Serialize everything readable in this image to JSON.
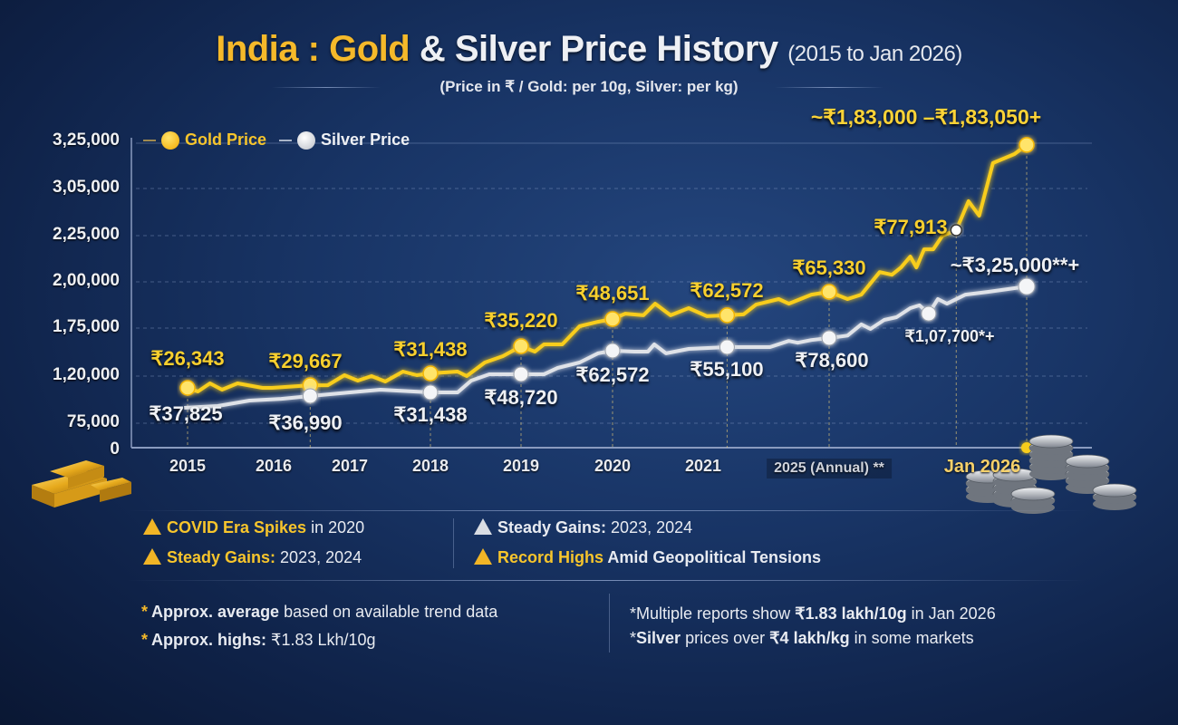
{
  "title": {
    "part1": "India : Gold",
    "part2": "& Silver Price History",
    "range": "(2015 to Jan 2026)"
  },
  "subtitle": "(Price in ₹ / Gold: per 10g, Silver: per kg)",
  "colors": {
    "gold": "#f8cd1e",
    "silver": "#e3e5ea",
    "background": "#183465"
  },
  "chart_data": {
    "type": "line",
    "title": "India : Gold & Silver Price History (2015 to Jan 2026)",
    "ylabel": "Price in ₹",
    "xlabel": "",
    "y_ticks": [
      "3,25,000",
      "3,05,000",
      "2,25,000",
      "2,00,000",
      "1,75,000",
      "1,20,000",
      "75,000",
      "0"
    ],
    "y_tick_values": [
      325000,
      305000,
      225000,
      200000,
      175000,
      120000,
      75000,
      0
    ],
    "categories": [
      "2015",
      "2016",
      "2017",
      "2018",
      "2019",
      "2020",
      "2021",
      "2025 (Annual) **",
      "Jan 2026"
    ],
    "grid": true,
    "legend_position": "top-left",
    "legend": [
      "Gold Price",
      "Silver Price"
    ],
    "series": [
      {
        "name": "Gold Price",
        "points": [
          [
            0,
            108750
          ],
          [
            0.12,
            105300
          ],
          [
            0.26,
            113100
          ],
          [
            0.4,
            107000
          ],
          [
            0.58,
            113100
          ],
          [
            0.87,
            108750
          ],
          [
            0.98,
            108750
          ],
          [
            1.48,
            111300
          ],
          [
            1.71,
            111300
          ],
          [
            1.93,
            121000
          ],
          [
            2.1,
            115700
          ],
          [
            2.27,
            120000
          ],
          [
            2.44,
            114800
          ],
          [
            2.66,
            125200
          ],
          [
            2.83,
            121000
          ],
          [
            3,
            123100
          ],
          [
            3.3,
            125200
          ],
          [
            3.4,
            120000
          ],
          [
            3.6,
            135600
          ],
          [
            3.8,
            142800
          ],
          [
            4,
            154200
          ],
          [
            4.15,
            148000
          ],
          [
            4.25,
            156300
          ],
          [
            4.45,
            156300
          ],
          [
            4.64,
            176000
          ],
          [
            4.84,
            178400
          ],
          [
            5,
            179900
          ],
          [
            5.14,
            182800
          ],
          [
            5.34,
            181900
          ],
          [
            5.47,
            188200
          ],
          [
            5.64,
            181900
          ],
          [
            5.84,
            185800
          ],
          [
            6.03,
            181400
          ],
          [
            6.19,
            181900
          ],
          [
            6.32,
            182400
          ],
          [
            6.42,
            187700
          ],
          [
            6.6,
            190700
          ],
          [
            6.68,
            188200
          ],
          [
            6.86,
            193100
          ],
          [
            7,
            194600
          ],
          [
            7.12,
            190700
          ],
          [
            7.21,
            193100
          ],
          [
            7.33,
            205300
          ],
          [
            7.41,
            203800
          ],
          [
            7.47,
            207800
          ],
          [
            7.53,
            213700
          ],
          [
            7.57,
            207800
          ],
          [
            7.62,
            217600
          ],
          [
            7.68,
            217600
          ],
          [
            7.74,
            225000
          ],
          [
            7.83,
            234200
          ],
          [
            7.91,
            283500
          ],
          [
            7.98,
            258800
          ],
          [
            8.07,
            315800
          ],
          [
            8.21,
            319600
          ],
          [
            8.29,
            323500
          ]
        ],
        "markers": [
          {
            "x": 0,
            "label": "₹26,343"
          },
          {
            "x": 1.48,
            "label": "₹29,667"
          },
          {
            "x": 3,
            "label": "₹31,438"
          },
          {
            "x": 4,
            "label": "₹35,220"
          },
          {
            "x": 5,
            "label": "₹48,651"
          },
          {
            "x": 6.19,
            "label": "₹62,572"
          },
          {
            "x": 7,
            "label": "₹65,330"
          },
          {
            "x": 7.83,
            "label": "₹77,913"
          },
          {
            "x": 8.29,
            "label": "~₹1,83,000 –₹1,83,050+"
          }
        ]
      },
      {
        "name": "Silver Price",
        "points": [
          [
            -0.04,
            89700
          ],
          [
            0.35,
            91400
          ],
          [
            0.72,
            96600
          ],
          [
            1.1,
            98300
          ],
          [
            1.48,
            101000
          ],
          [
            2,
            104400
          ],
          [
            2.38,
            107000
          ],
          [
            3,
            104400
          ],
          [
            3.3,
            104400
          ],
          [
            3.45,
            115700
          ],
          [
            3.65,
            122100
          ],
          [
            4,
            122100
          ],
          [
            4.25,
            122100
          ],
          [
            4.4,
            129300
          ],
          [
            4.64,
            135600
          ],
          [
            4.84,
            146000
          ],
          [
            5,
            149100
          ],
          [
            5.24,
            148000
          ],
          [
            5.39,
            148000
          ],
          [
            5.46,
            156300
          ],
          [
            5.59,
            146000
          ],
          [
            5.84,
            151100
          ],
          [
            6.19,
            153200
          ],
          [
            6.53,
            153200
          ],
          [
            6.68,
            160300
          ],
          [
            6.75,
            158200
          ],
          [
            6.86,
            161300
          ],
          [
            7,
            163600
          ],
          [
            7.12,
            166400
          ],
          [
            7.21,
            177000
          ],
          [
            7.27,
            174000
          ],
          [
            7.36,
            179400
          ],
          [
            7.44,
            180900
          ],
          [
            7.53,
            185800
          ],
          [
            7.59,
            187300
          ],
          [
            7.65,
            182800
          ],
          [
            7.71,
            190700
          ],
          [
            7.77,
            188200
          ],
          [
            7.89,
            193100
          ],
          [
            8.04,
            194600
          ],
          [
            8.29,
            197500
          ]
        ],
        "markers": [
          {
            "x": -0.04,
            "label": "₹37,825"
          },
          {
            "x": 1.48,
            "label": "₹36,990"
          },
          {
            "x": 3,
            "label": "₹31,438"
          },
          {
            "x": 4,
            "label": "₹48,720"
          },
          {
            "x": 5,
            "label": "₹62,572"
          },
          {
            "x": 6.19,
            "label": "₹55,100"
          },
          {
            "x": 7,
            "label": "₹78,600"
          },
          {
            "x": 7.65,
            "label": "₹1,07,700*+"
          },
          {
            "x": 8.29,
            "label": "~₹3,25,000**+"
          }
        ]
      }
    ]
  },
  "notes": {
    "covid": {
      "hl": "COVID Era Spikes",
      "rest": " in 2020"
    },
    "steady_gold": {
      "hl": "Steady Gains:",
      "rest": " 2023, 2024"
    },
    "steady_silver": {
      "hl": "Steady Gains:",
      "rest": " 2023, 2024"
    },
    "record": {
      "hl": "Record Highs",
      "rest": " Amid Geopolitical Tensions"
    }
  },
  "footnotes": {
    "f1": {
      "star": "*",
      "bold": "Approx. average",
      "rest": " based on available trend data"
    },
    "f2": {
      "star": "*",
      "bold": "Approx. highs:",
      "rest": "  ₹1.83 Lkh/10g"
    },
    "f3": {
      "star": "*",
      "pre": "Multiple reports show ",
      "bold": "₹1.83 lakh/10g",
      "rest": " in Jan 2026"
    },
    "f4": {
      "star": "*",
      "bold": "Silver",
      "pre": " prices over ",
      "bold2": "₹4 lakh/kg",
      "rest": " in some markets"
    }
  }
}
